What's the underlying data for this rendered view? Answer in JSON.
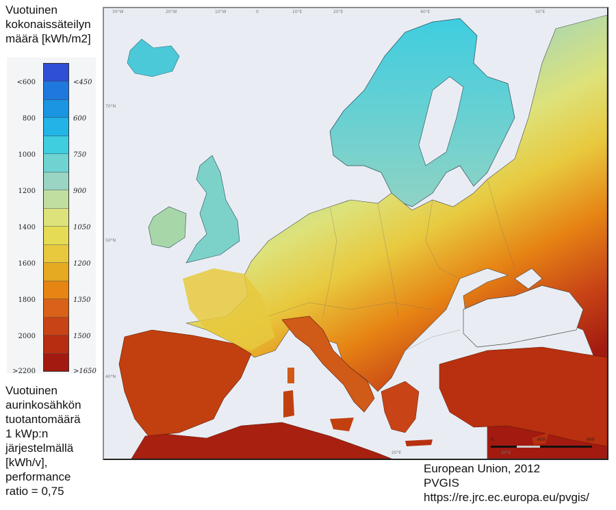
{
  "title_top": [
    "Vuotuinen",
    "kokonaissäteilyn",
    "määrä [kWh/m2]"
  ],
  "title_bottom": [
    "Vuotuinen",
    "aurinkosähkön",
    "tuotantomäärä",
    "1 kWp:n",
    "järjestelmällä",
    "[kWh/v],",
    "performance",
    "ratio = 0,75"
  ],
  "credits": [
    "European Union, 2012",
    "PVGIS",
    "https://re.jrc.ec.europa.eu/pvgis/"
  ],
  "legend": {
    "left_title": "Vuotuinen kokonaissäteilyn määrä [kWh/m2]",
    "right_title": "Vuotuinen aurinkosähkön tuotantomäärä [kWh/v]",
    "left_labels": [
      "<600",
      "800",
      "1000",
      "1200",
      "1400",
      "1600",
      "1800",
      "2000",
      ">2200"
    ],
    "right_labels": [
      "<450",
      "600",
      "750",
      "900",
      "1050",
      "1200",
      "1350",
      "1500",
      ">1650"
    ],
    "bands": [
      "#2f4fd6",
      "#1f78dd",
      "#1a95e2",
      "#22b4e6",
      "#3fcde0",
      "#6fd3d2",
      "#9ad4c2",
      "#c0dea0",
      "#dde27a",
      "#e6db55",
      "#e8c93e",
      "#e5aa22",
      "#e68414",
      "#d9611a",
      "#c84416",
      "#b72d12",
      "#a21a10"
    ]
  },
  "map": {
    "top_ticks": [
      "30°W",
      "20°W",
      "10°W",
      "0",
      "10°E",
      "20°E",
      "40°E",
      "50°E"
    ],
    "bottom_ticks": [
      "20°E",
      "30°E"
    ],
    "left_ticks": [
      "70°N",
      "50°N",
      "40°N"
    ],
    "scale_bar": {
      "labels": [
        "0",
        "450",
        "900"
      ],
      "unit": "km"
    },
    "colors": {
      "sea": "#e9edf3",
      "border": "#4a4a4a"
    }
  }
}
